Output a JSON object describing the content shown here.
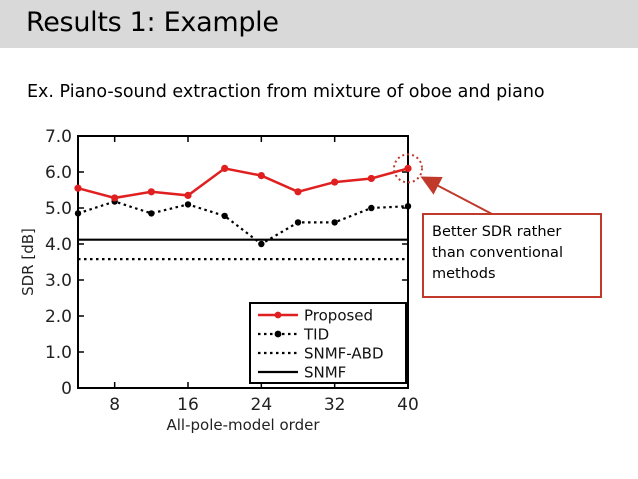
{
  "slide": {
    "title": "Results 1: Example",
    "subtitle": "Ex. Piano-sound extraction from mixture of oboe and piano",
    "callout_lines": [
      "Better SDR rather",
      "than conventional",
      "methods"
    ]
  },
  "colors": {
    "accent": "#e02020",
    "callout_border": "#c0392b",
    "title_bar": "#d9d9d9"
  },
  "chart_data": {
    "type": "line",
    "xlabel": "All-pole-model order",
    "ylabel": "SDR [dB]",
    "xlim": [
      4,
      40
    ],
    "ylim": [
      0,
      7
    ],
    "xticks": [
      8,
      16,
      24,
      32,
      40
    ],
    "xtick_labels": [
      "8",
      "16",
      "24",
      "32",
      "40"
    ],
    "yticks": [
      0,
      1,
      2,
      3,
      4,
      5,
      6,
      7
    ],
    "ytick_labels": [
      "0",
      "1.0",
      "2.0",
      "3.0",
      "4.0",
      "5.0",
      "6.0",
      "7.0"
    ],
    "grid": false,
    "legend_position": "bottom-right",
    "x": [
      4,
      8,
      12,
      16,
      20,
      24,
      28,
      32,
      36,
      40
    ],
    "series": [
      {
        "name": "Proposed",
        "color": "#e02020",
        "style": "solid-marker",
        "values": [
          5.55,
          5.28,
          5.45,
          5.35,
          6.1,
          5.9,
          5.45,
          5.72,
          5.82,
          6.1
        ]
      },
      {
        "name": "TID",
        "color": "#000000",
        "style": "dotted-marker",
        "values": [
          4.85,
          5.18,
          4.85,
          5.1,
          4.78,
          4.0,
          4.6,
          4.6,
          5.0,
          5.05
        ]
      },
      {
        "name": "SNMF-ABD",
        "color": "#000000",
        "style": "dotted",
        "values": [
          3.58,
          3.58,
          3.58,
          3.58,
          3.58,
          3.58,
          3.58,
          3.58,
          3.58,
          3.58
        ]
      },
      {
        "name": "SNMF",
        "color": "#000000",
        "style": "solid",
        "values": [
          4.12,
          4.12,
          4.12,
          4.12,
          4.12,
          4.12,
          4.12,
          4.12,
          4.12,
          4.12
        ]
      }
    ]
  }
}
